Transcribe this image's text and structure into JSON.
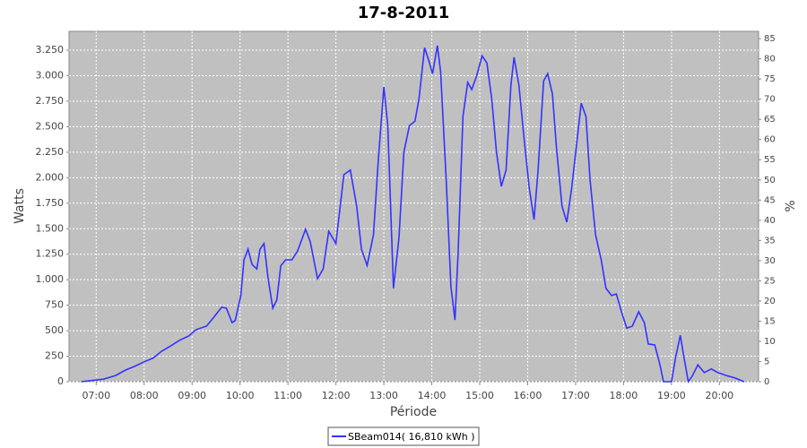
{
  "chart_data": {
    "type": "line",
    "title": "17-8-2011",
    "xlabel": "Période",
    "ylabel": "Watts",
    "y2label": "%",
    "x": [
      "06:41",
      "06:52",
      "07:09",
      "07:24",
      "07:37",
      "07:48",
      "08:00",
      "08:11",
      "08:22",
      "08:33",
      "08:44",
      "08:56",
      "09:05",
      "09:18",
      "09:27",
      "09:37",
      "09:43",
      "09:50",
      "09:54",
      "10:01",
      "10:05",
      "10:10",
      "10:15",
      "10:21",
      "10:25",
      "10:30",
      "10:35",
      "10:41",
      "10:46",
      "10:51",
      "10:57",
      "11:05",
      "11:12",
      "11:22",
      "11:28",
      "11:37",
      "11:44",
      "11:51",
      "12:00",
      "12:10",
      "12:18",
      "12:26",
      "12:32",
      "12:39",
      "12:47",
      "12:53",
      "13:00",
      "13:05",
      "13:12",
      "13:19",
      "13:25",
      "13:32",
      "13:39",
      "13:44",
      "13:51",
      "13:56",
      "14:01",
      "14:07",
      "14:11",
      "14:18",
      "14:24",
      "14:29",
      "14:33",
      "14:39",
      "14:45",
      "14:50",
      "14:56",
      "15:03",
      "15:09",
      "15:15",
      "15:21",
      "15:27",
      "15:33",
      "15:39",
      "15:43",
      "15:49",
      "15:55",
      "16:02",
      "16:08",
      "16:13",
      "16:20",
      "16:25",
      "16:31",
      "16:36",
      "16:43",
      "16:49",
      "16:55",
      "17:02",
      "17:07",
      "17:13",
      "17:18",
      "17:25",
      "17:32",
      "17:38",
      "17:45",
      "17:51",
      "17:58",
      "18:04",
      "18:11",
      "18:19",
      "18:26",
      "18:31",
      "18:39",
      "18:45",
      "18:50",
      "19:00",
      "19:05",
      "19:11",
      "19:15",
      "19:21",
      "19:26",
      "19:33",
      "19:41",
      "19:50",
      "19:58",
      "20:09",
      "20:20",
      "20:31"
    ],
    "series": [
      {
        "name": "SBeam014( 16,810 kWh )",
        "color": "#3333ff",
        "values": [
          0,
          10,
          25,
          60,
          115,
          150,
          195,
          230,
          300,
          350,
          405,
          450,
          510,
          545,
          630,
          730,
          720,
          580,
          600,
          845,
          1195,
          1300,
          1150,
          1105,
          1300,
          1355,
          1020,
          720,
          800,
          1135,
          1195,
          1195,
          1280,
          1495,
          1370,
          1010,
          1105,
          1475,
          1355,
          2030,
          2075,
          1720,
          1300,
          1140,
          1440,
          2160,
          2890,
          2510,
          915,
          1415,
          2250,
          2510,
          2555,
          2775,
          3275,
          3155,
          3020,
          3295,
          3040,
          1985,
          930,
          605,
          1280,
          2600,
          2935,
          2865,
          2995,
          3195,
          3125,
          2775,
          2250,
          1915,
          2075,
          2910,
          3180,
          2910,
          2425,
          1895,
          1590,
          2075,
          2950,
          3020,
          2820,
          2295,
          1720,
          1565,
          1895,
          2380,
          2730,
          2600,
          1985,
          1440,
          1195,
          915,
          845,
          860,
          670,
          525,
          545,
          685,
          580,
          370,
          360,
          185,
          0,
          0,
          230,
          455,
          270,
          0,
          55,
          165,
          90,
          125,
          90,
          60,
          35,
          0
        ]
      }
    ],
    "xlim": [
      "06:26",
      "20:49"
    ],
    "xticks": [
      "07:00",
      "08:00",
      "09:00",
      "10:00",
      "11:00",
      "12:00",
      "13:00",
      "14:00",
      "15:00",
      "16:00",
      "17:00",
      "18:00",
      "19:00",
      "20:00"
    ],
    "ylim": [
      0,
      3435
    ],
    "yticks": [
      0,
      250,
      500,
      750,
      {
        "value": 1000,
        "label": "1.000"
      },
      {
        "value": 1250,
        "label": "1.250"
      },
      {
        "value": 1500,
        "label": "1.500"
      },
      {
        "value": 1750,
        "label": "1.750"
      },
      {
        "value": 2000,
        "label": "2.000"
      },
      {
        "value": 2250,
        "label": "2.250"
      },
      {
        "value": 2500,
        "label": "2.500"
      },
      {
        "value": 2750,
        "label": "2.750"
      },
      {
        "value": 3000,
        "label": "3.000"
      },
      {
        "value": 3250,
        "label": "3.250"
      }
    ],
    "y2lim": [
      0,
      86.8
    ],
    "y2ticks": [
      0,
      5,
      10,
      15,
      20,
      25,
      30,
      35,
      40,
      45,
      50,
      55,
      60,
      65,
      70,
      75,
      80,
      85
    ],
    "grid": true,
    "legend": "bottom"
  }
}
